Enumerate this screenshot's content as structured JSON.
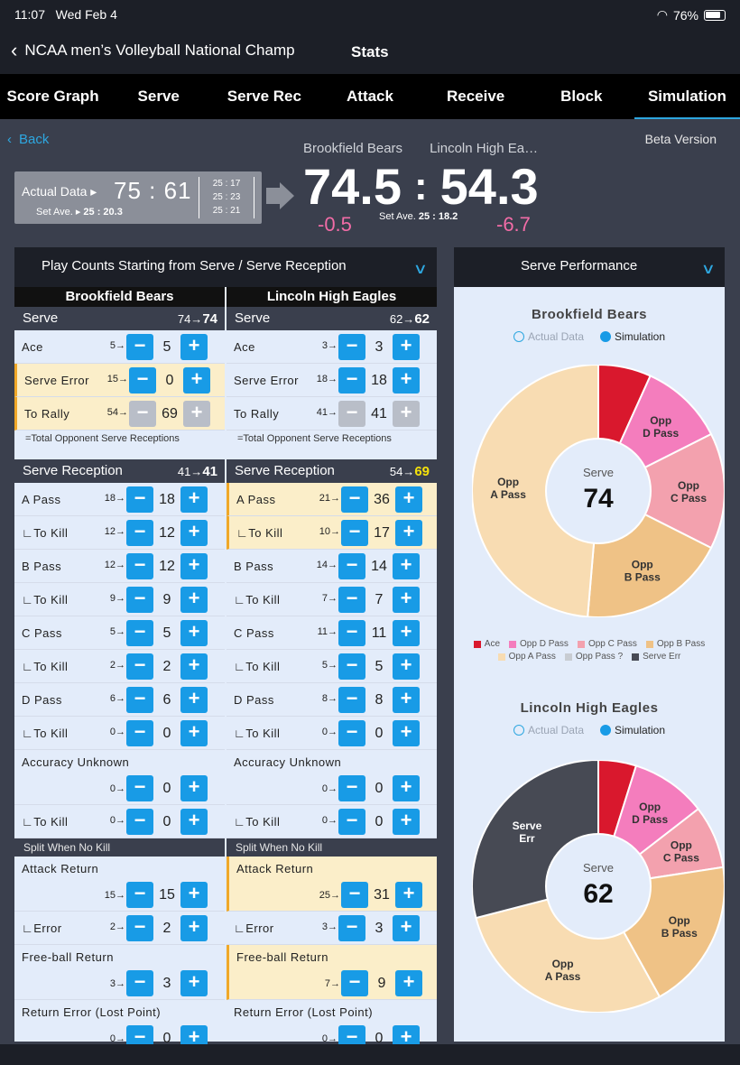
{
  "status": {
    "time": "11:07",
    "date": "Wed Feb 4",
    "battery": "76%"
  },
  "nav": {
    "back_title": "NCAA men’s Volleyball National Champ",
    "title": "Stats"
  },
  "tabs": [
    "Score Graph",
    "Serve",
    "Serve Rec",
    "Attack",
    "Receive",
    "Block",
    "Simulation"
  ],
  "active_tab": "Simulation",
  "header": {
    "back": "Back",
    "beta": "Beta Version",
    "home_name": "Brookfield Bears",
    "away_name": "Lincoln High Ea…",
    "actual_label": "Actual Data",
    "actual_score": "75 : 61",
    "actual_setave_label": "Set Ave.",
    "actual_setave": "25 : 20.3",
    "sets": [
      "25 : 17",
      "25 : 23",
      "25 : 21"
    ],
    "sim_home": "74.5",
    "sim_away": "54.3",
    "diff_home": "-0.5",
    "diff_away": "-6.7",
    "sim_setave_label": "Set Ave.",
    "sim_setave": "25 : 18.2"
  },
  "left_panel": {
    "title": "Play Counts Starting from Serve / Serve Reception",
    "split_label": "Split When No Kill",
    "note": "=Total Opponent Serve Receptions",
    "teams": [
      {
        "name": "Brookfield Bears",
        "serve": {
          "label": "Serve",
          "from": "74→",
          "to": "74"
        },
        "serve_rows": [
          {
            "label": "Ace",
            "pre": "5→",
            "val": "5"
          },
          {
            "label": "Serve Error",
            "pre": "15→",
            "val": "0"
          },
          {
            "label": "To Rally",
            "pre": "54→",
            "val": "69"
          }
        ],
        "rec": {
          "label": "Serve Reception",
          "from": "41→",
          "to": "41"
        },
        "rec_rows": [
          {
            "label": "A Pass",
            "pre": "18→",
            "val": "18"
          },
          {
            "label": "∟To Kill",
            "pre": "12→",
            "val": "12"
          },
          {
            "label": "B Pass",
            "pre": "12→",
            "val": "12"
          },
          {
            "label": "∟To Kill",
            "pre": "9→",
            "val": "9"
          },
          {
            "label": "C Pass",
            "pre": "5→",
            "val": "5"
          },
          {
            "label": "∟To Kill",
            "pre": "2→",
            "val": "2"
          },
          {
            "label": "D Pass",
            "pre": "6→",
            "val": "6"
          },
          {
            "label": "∟To Kill",
            "pre": "0→",
            "val": "0"
          }
        ],
        "unknown": {
          "label": "Accuracy Unknown",
          "pre": "0→",
          "val": "0"
        },
        "unknown_kill": {
          "label": "∟To Kill",
          "pre": "0→",
          "val": "0"
        },
        "attack_return": {
          "label": "Attack Return",
          "pre": "15→",
          "val": "15"
        },
        "error": {
          "label": "∟Error",
          "pre": "2→",
          "val": "2"
        },
        "freeball": {
          "label": "Free-ball Return",
          "pre": "3→",
          "val": "3"
        },
        "return_error": {
          "label": "Return Error (Lost Point)",
          "pre": "0→",
          "val": "0"
        }
      },
      {
        "name": "Lincoln High Eagles",
        "serve": {
          "label": "Serve",
          "from": "62→",
          "to": "62"
        },
        "serve_rows": [
          {
            "label": "Ace",
            "pre": "3→",
            "val": "3"
          },
          {
            "label": "Serve Error",
            "pre": "18→",
            "val": "18"
          },
          {
            "label": "To Rally",
            "pre": "41→",
            "val": "41"
          }
        ],
        "rec": {
          "label": "Serve Reception",
          "from": "54→",
          "to": "69"
        },
        "rec_rows": [
          {
            "label": "A Pass",
            "pre": "21→",
            "val": "36"
          },
          {
            "label": "∟To Kill",
            "pre": "10→",
            "val": "17"
          },
          {
            "label": "B Pass",
            "pre": "14→",
            "val": "14"
          },
          {
            "label": "∟To Kill",
            "pre": "7→",
            "val": "7"
          },
          {
            "label": "C Pass",
            "pre": "11→",
            "val": "11"
          },
          {
            "label": "∟To Kill",
            "pre": "5→",
            "val": "5"
          },
          {
            "label": "D Pass",
            "pre": "8→",
            "val": "8"
          },
          {
            "label": "∟To Kill",
            "pre": "0→",
            "val": "0"
          }
        ],
        "unknown": {
          "label": "Accuracy Unknown",
          "pre": "0→",
          "val": "0"
        },
        "unknown_kill": {
          "label": "∟To Kill",
          "pre": "0→",
          "val": "0"
        },
        "attack_return": {
          "label": "Attack Return",
          "pre": "25→",
          "val": "31"
        },
        "error": {
          "label": "∟Error",
          "pre": "3→",
          "val": "3"
        },
        "freeball": {
          "label": "Free-ball Return",
          "pre": "7→",
          "val": "9"
        },
        "return_error": {
          "label": "Return Error (Lost Point)",
          "pre": "0→",
          "val": "0"
        }
      }
    ]
  },
  "right_panel": {
    "title": "Serve Performance",
    "legend_actual": "Actual Data",
    "legend_sim": "Simulation",
    "center_label": "Serve",
    "pie_legend": [
      {
        "name": "Ace",
        "color": "#d9182d"
      },
      {
        "name": "Opp D Pass",
        "color": "#f47dbd"
      },
      {
        "name": "Opp C Pass",
        "color": "#f3a1ae"
      },
      {
        "name": "Opp B Pass",
        "color": "#efc286"
      },
      {
        "name": "Opp A Pass",
        "color": "#f8dcb2"
      },
      {
        "name": "Opp Pass ?",
        "color": "#c8ccd2"
      },
      {
        "name": "Serve Err",
        "color": "#474a54"
      }
    ]
  },
  "chart_data": [
    {
      "type": "pie",
      "title": "Brookfield Bears",
      "center_value": "74",
      "categories": [
        "Ace",
        "Opp D Pass",
        "Opp C Pass",
        "Opp B Pass",
        "Opp A Pass",
        "Opp Pass ?",
        "Serve Err"
      ],
      "values": [
        5,
        8,
        11,
        14,
        36,
        0,
        0
      ],
      "slice_labels": [
        "",
        "Opp D Pass",
        "Opp C Pass",
        "Opp B Pass",
        "Opp A Pass",
        "",
        ""
      ]
    },
    {
      "type": "pie",
      "title": "Lincoln High Eagles",
      "center_value": "62",
      "categories": [
        "Ace",
        "Opp D Pass",
        "Opp C Pass",
        "Opp B Pass",
        "Opp A Pass",
        "Opp Pass ?",
        "Serve Err"
      ],
      "values": [
        3,
        6,
        5,
        12,
        18,
        0,
        18
      ],
      "slice_labels": [
        "",
        "Opp D Pass",
        "Opp C Pass",
        "Opp B Pass",
        "Opp A Pass",
        "",
        "Serve Err"
      ]
    }
  ]
}
